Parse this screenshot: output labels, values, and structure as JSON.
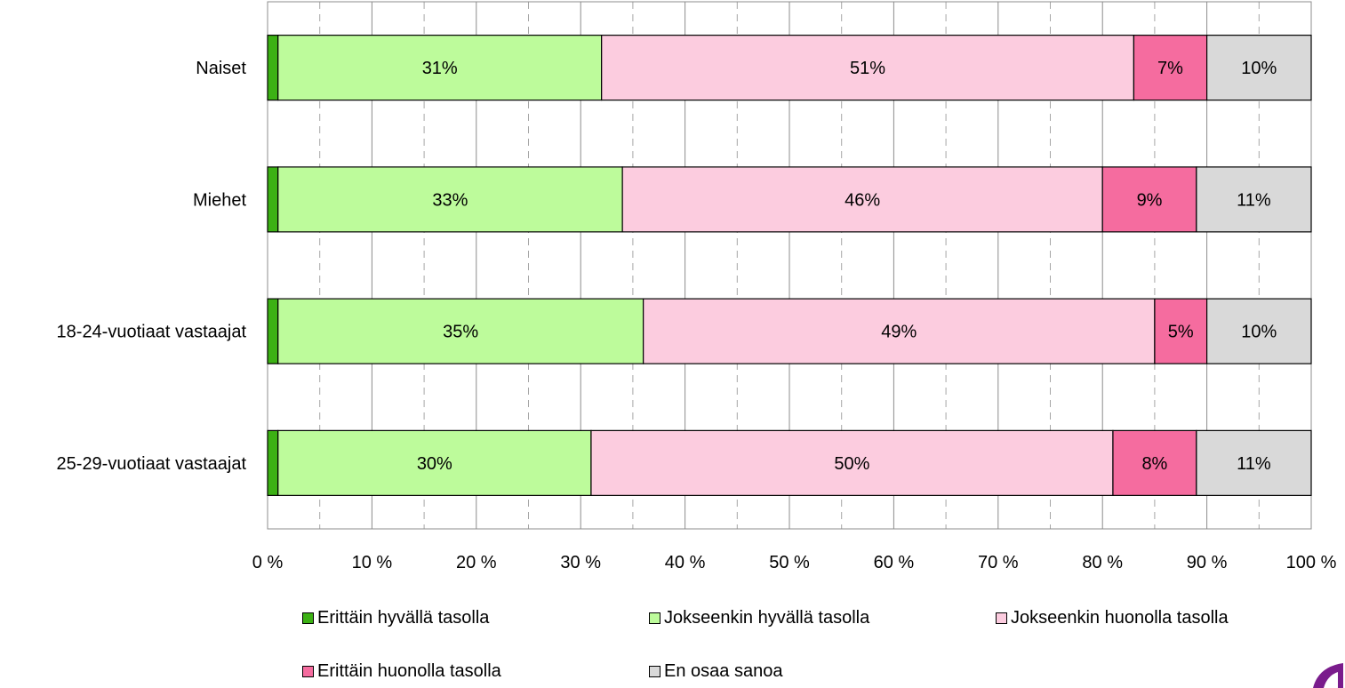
{
  "chart_data": {
    "type": "bar",
    "orientation": "horizontal",
    "stacked": true,
    "categories": [
      "Naiset",
      "Miehet",
      "18-24-vuotiaat vastaajat",
      "25-29-vuotiaat vastaajat"
    ],
    "series": [
      {
        "name": "Erittäin hyvällä tasolla",
        "color": "#3cb114",
        "values": [
          1,
          1,
          1,
          1
        ],
        "labels": [
          "",
          "",
          "",
          ""
        ]
      },
      {
        "name": "Jokseenkin hyvällä tasolla",
        "color": "#bdfb9b",
        "values": [
          31,
          33,
          35,
          30
        ],
        "labels": [
          "31%",
          "33%",
          "35%",
          "30%"
        ]
      },
      {
        "name": "Jokseenkin huonolla tasolla",
        "color": "#fcccdf",
        "values": [
          51,
          46,
          49,
          50
        ],
        "labels": [
          "51%",
          "46%",
          "49%",
          "50%"
        ]
      },
      {
        "name": "Erittäin huonolla tasolla",
        "color": "#f56c9f",
        "values": [
          7,
          9,
          5,
          8
        ],
        "labels": [
          "7%",
          "9%",
          "5%",
          "8%"
        ]
      },
      {
        "name": "En osaa sanoa",
        "color": "#d9d9d9",
        "values": [
          10,
          11,
          10,
          11
        ],
        "labels": [
          "10%",
          "11%",
          "10%",
          "11%"
        ]
      }
    ],
    "xlim": [
      0,
      100
    ],
    "xticks": [
      0,
      10,
      20,
      30,
      40,
      50,
      60,
      70,
      80,
      90,
      100
    ],
    "xtick_labels": [
      "0 %",
      "10 %",
      "20 %",
      "30 %",
      "40 %",
      "50 %",
      "60 %",
      "70 %",
      "80 %",
      "90 %",
      "100 %"
    ],
    "grid": true,
    "legend_position": "bottom"
  }
}
